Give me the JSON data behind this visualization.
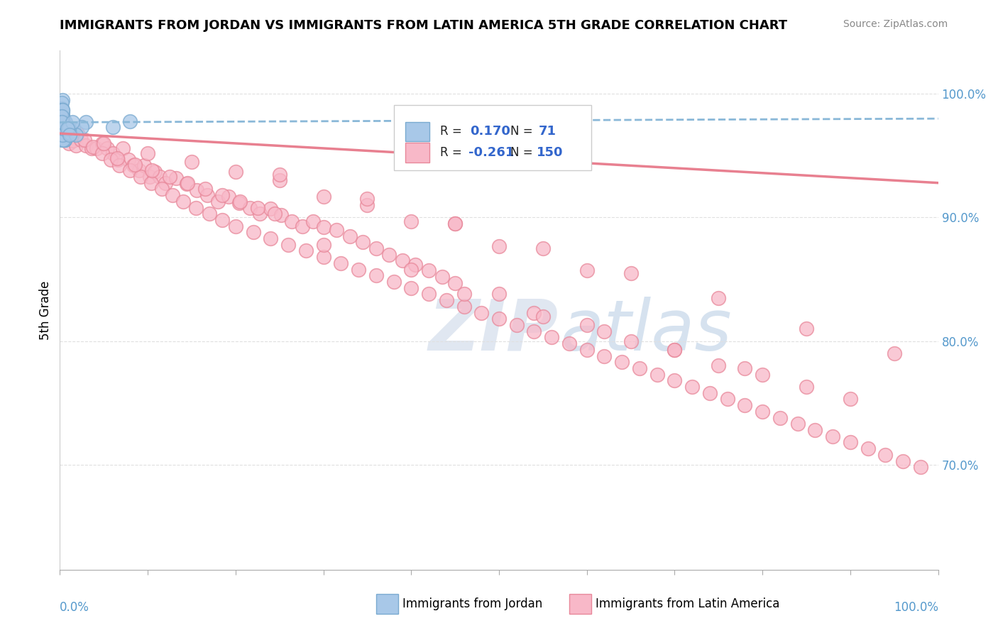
{
  "title": "IMMIGRANTS FROM JORDAN VS IMMIGRANTS FROM LATIN AMERICA 5TH GRADE CORRELATION CHART",
  "source": "Source: ZipAtlas.com",
  "ylabel": "5th Grade",
  "xlim": [
    0.0,
    1.0
  ],
  "ylim": [
    0.615,
    1.035
  ],
  "yticks": [
    0.7,
    0.8,
    0.9,
    1.0
  ],
  "ytick_labels": [
    "70.0%",
    "80.0%",
    "90.0%",
    "100.0%"
  ],
  "xtick_labels_bottom": [
    "0.0%",
    "100.0%"
  ],
  "color_jordan_fill": "#a8c8e8",
  "color_jordan_edge": "#7aaad0",
  "color_latin_fill": "#f8b8c8",
  "color_latin_edge": "#e8889a",
  "color_jordan_line": "#8ab8d8",
  "color_latin_line": "#e88090",
  "background": "#ffffff",
  "watermark_zip": "ZIP",
  "watermark_atlas": "atlas",
  "grid_color": "#e0e0e0",
  "jordan_x": [
    0.002,
    0.003,
    0.004,
    0.002,
    0.003,
    0.005,
    0.002,
    0.004,
    0.006,
    0.003,
    0.002,
    0.003,
    0.004,
    0.002,
    0.003,
    0.005,
    0.007,
    0.002,
    0.004,
    0.003,
    0.002,
    0.005,
    0.003,
    0.004,
    0.002,
    0.003,
    0.002,
    0.006,
    0.004,
    0.003,
    0.002,
    0.003,
    0.005,
    0.002,
    0.004,
    0.003,
    0.002,
    0.005,
    0.003,
    0.004,
    0.002,
    0.003,
    0.004,
    0.002,
    0.005,
    0.003,
    0.002,
    0.004,
    0.003,
    0.005,
    0.002,
    0.003,
    0.002,
    0.004,
    0.003,
    0.005,
    0.002,
    0.003,
    0.004,
    0.002,
    0.08,
    0.06,
    0.03,
    0.015,
    0.025,
    0.012,
    0.018,
    0.01,
    0.014,
    0.009,
    0.011
  ],
  "jordan_y": [
    0.98,
    0.985,
    0.975,
    0.97,
    0.995,
    0.978,
    0.982,
    0.968,
    0.977,
    0.972,
    0.988,
    0.965,
    0.975,
    0.983,
    0.978,
    0.972,
    0.968,
    0.993,
    0.973,
    0.982,
    0.973,
    0.963,
    0.978,
    0.973,
    0.983,
    0.977,
    0.973,
    0.967,
    0.977,
    0.982,
    0.987,
    0.973,
    0.963,
    0.977,
    0.973,
    0.982,
    0.977,
    0.972,
    0.967,
    0.973,
    0.977,
    0.987,
    0.972,
    0.963,
    0.972,
    0.977,
    0.982,
    0.972,
    0.967,
    0.963,
    0.977,
    0.987,
    0.972,
    0.963,
    0.977,
    0.972,
    0.982,
    0.967,
    0.972,
    0.977,
    0.978,
    0.973,
    0.977,
    0.972,
    0.973,
    0.968,
    0.967,
    0.972,
    0.977,
    0.972,
    0.967
  ],
  "latin_x": [
    0.002,
    0.004,
    0.006,
    0.012,
    0.007,
    0.01,
    0.015,
    0.018,
    0.024,
    0.03,
    0.036,
    0.042,
    0.048,
    0.054,
    0.06,
    0.066,
    0.072,
    0.078,
    0.084,
    0.09,
    0.096,
    0.102,
    0.108,
    0.114,
    0.12,
    0.132,
    0.144,
    0.156,
    0.168,
    0.18,
    0.192,
    0.204,
    0.216,
    0.228,
    0.24,
    0.252,
    0.264,
    0.276,
    0.288,
    0.3,
    0.315,
    0.33,
    0.345,
    0.36,
    0.375,
    0.39,
    0.405,
    0.42,
    0.435,
    0.45,
    0.02,
    0.028,
    0.038,
    0.048,
    0.058,
    0.068,
    0.08,
    0.092,
    0.104,
    0.116,
    0.128,
    0.14,
    0.155,
    0.17,
    0.185,
    0.2,
    0.22,
    0.24,
    0.26,
    0.28,
    0.3,
    0.32,
    0.34,
    0.36,
    0.38,
    0.4,
    0.42,
    0.44,
    0.46,
    0.48,
    0.5,
    0.52,
    0.54,
    0.56,
    0.58,
    0.6,
    0.62,
    0.64,
    0.66,
    0.68,
    0.7,
    0.72,
    0.74,
    0.76,
    0.78,
    0.8,
    0.82,
    0.84,
    0.86,
    0.88,
    0.9,
    0.92,
    0.94,
    0.96,
    0.98,
    0.46,
    0.54,
    0.62,
    0.7,
    0.78,
    0.85,
    0.3,
    0.4,
    0.5,
    0.6,
    0.7,
    0.8,
    0.9,
    0.55,
    0.65,
    0.75,
    0.05,
    0.15,
    0.25,
    0.35,
    0.45,
    0.25,
    0.35,
    0.45,
    0.55,
    0.65,
    0.75,
    0.85,
    0.95,
    0.1,
    0.2,
    0.3,
    0.4,
    0.5,
    0.6,
    0.065,
    0.085,
    0.105,
    0.125,
    0.145,
    0.165,
    0.185,
    0.205,
    0.225,
    0.245
  ],
  "latin_y": [
    0.978,
    0.972,
    0.968,
    0.965,
    0.97,
    0.96,
    0.962,
    0.958,
    0.963,
    0.958,
    0.956,
    0.956,
    0.96,
    0.956,
    0.952,
    0.947,
    0.956,
    0.947,
    0.942,
    0.938,
    0.942,
    0.933,
    0.937,
    0.933,
    0.928,
    0.932,
    0.927,
    0.922,
    0.918,
    0.913,
    0.917,
    0.912,
    0.908,
    0.903,
    0.907,
    0.902,
    0.897,
    0.893,
    0.897,
    0.892,
    0.89,
    0.885,
    0.88,
    0.875,
    0.87,
    0.865,
    0.862,
    0.857,
    0.852,
    0.847,
    0.968,
    0.963,
    0.957,
    0.952,
    0.947,
    0.942,
    0.938,
    0.933,
    0.928,
    0.923,
    0.918,
    0.913,
    0.908,
    0.903,
    0.898,
    0.893,
    0.888,
    0.883,
    0.878,
    0.873,
    0.868,
    0.863,
    0.858,
    0.853,
    0.848,
    0.843,
    0.838,
    0.833,
    0.828,
    0.823,
    0.818,
    0.813,
    0.808,
    0.803,
    0.798,
    0.793,
    0.788,
    0.783,
    0.778,
    0.773,
    0.768,
    0.763,
    0.758,
    0.753,
    0.748,
    0.743,
    0.738,
    0.733,
    0.728,
    0.723,
    0.718,
    0.713,
    0.708,
    0.703,
    0.698,
    0.838,
    0.823,
    0.808,
    0.793,
    0.778,
    0.763,
    0.878,
    0.858,
    0.838,
    0.813,
    0.793,
    0.773,
    0.753,
    0.82,
    0.8,
    0.78,
    0.96,
    0.945,
    0.93,
    0.91,
    0.895,
    0.935,
    0.915,
    0.895,
    0.875,
    0.855,
    0.835,
    0.81,
    0.79,
    0.952,
    0.937,
    0.917,
    0.897,
    0.877,
    0.857,
    0.948,
    0.943,
    0.938,
    0.933,
    0.928,
    0.923,
    0.918,
    0.913,
    0.908,
    0.903
  ],
  "jordan_trend": [
    0.0,
    1.0,
    0.977,
    0.98
  ],
  "latin_trend": [
    0.0,
    1.0,
    0.968,
    0.928
  ]
}
